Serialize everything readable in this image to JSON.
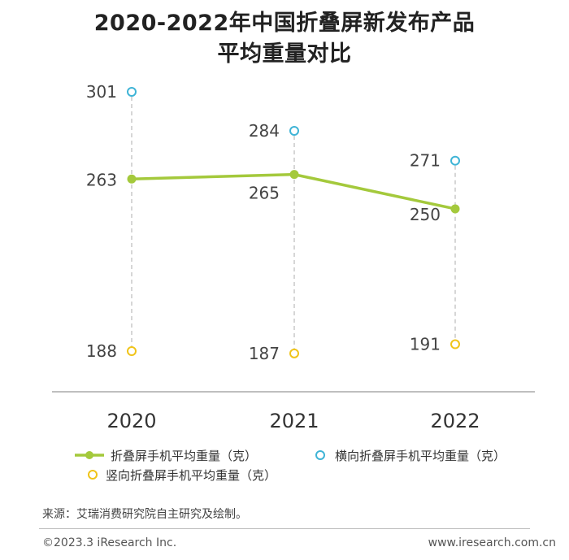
{
  "title_line1": "2020-2022年中国折叠屏新发布产品",
  "title_line2": "平均重量对比",
  "colors": {
    "main": "#a4c93c",
    "horizontal": "#3fb4d6",
    "vertical": "#f0c419",
    "dash": "#bbbbbb",
    "axis": "#999999",
    "label": "#444444"
  },
  "chart_data": {
    "type": "line",
    "title": "2020-2022年中国折叠屏新发布产品平均重量对比",
    "categories": [
      "2020",
      "2021",
      "2022"
    ],
    "series": [
      {
        "name": "折叠屏手机平均重量（克）",
        "values": [
          263,
          265,
          250
        ],
        "style": "line-with-dots"
      },
      {
        "name": "横向折叠屏手机平均重量（克）",
        "values": [
          301,
          284,
          271
        ],
        "style": "hollow-circle"
      },
      {
        "name": "竖向折叠屏手机平均重量（克）",
        "values": [
          188,
          187,
          191
        ],
        "style": "hollow-circle"
      }
    ],
    "ylim": [
      180,
      310
    ]
  },
  "legend": {
    "main": "折叠屏手机平均重量（克）",
    "horizontal": "横向折叠屏手机平均重量（克）",
    "vertical": "竖向折叠屏手机平均重量（克）"
  },
  "source": "来源：艾瑞消费研究院自主研究及绘制。",
  "copyright": "©2023.3 iResearch Inc.",
  "website": "www.iresearch.com.cn"
}
